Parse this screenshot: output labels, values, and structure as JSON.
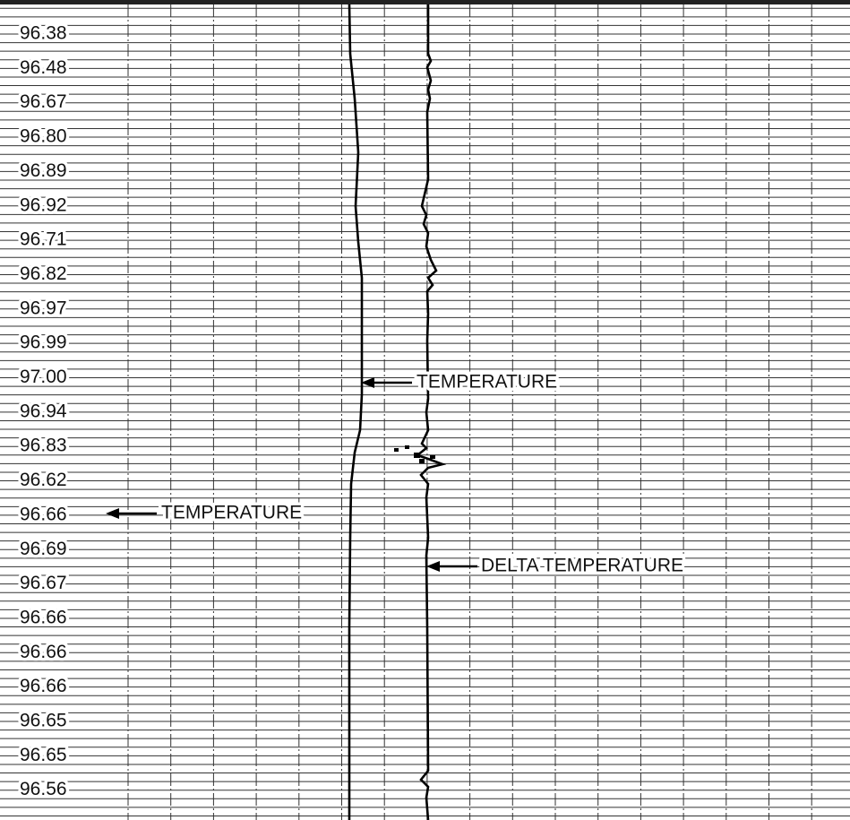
{
  "readings": [
    "96.38",
    "96.48",
    "96.67",
    "96.80",
    "96.89",
    "96.92",
    "96.71",
    "96.82",
    "96.97",
    "96.99",
    "97.00",
    "96.94",
    "96.83",
    "96.62",
    "96.66",
    "96.69",
    "96.67",
    "96.66",
    "96.66",
    "96.66",
    "96.65",
    "96.65",
    "96.56"
  ],
  "annotations": {
    "temperature_curve": "TEMPERATURE",
    "temperature_readings": "TEMPERATURE",
    "delta_temperature_curve": "DELTA TEMPERATURE"
  }
}
